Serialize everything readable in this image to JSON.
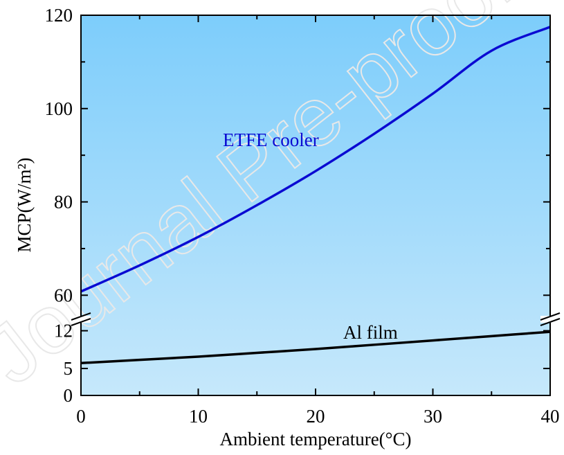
{
  "chart_data": {
    "type": "line",
    "xlabel": "Ambient temperature(°C)",
    "ylabel": "MCP(W/m²)",
    "xlim": [
      0,
      40
    ],
    "x_ticks": [
      "0",
      "10",
      "20",
      "30",
      "40"
    ],
    "y_ticks_upper": [
      "60",
      "80",
      "100",
      "120"
    ],
    "y_ticks_lower": [
      "0",
      "5",
      "12"
    ],
    "ylim_upper": [
      55,
      120
    ],
    "ylim_lower": [
      0,
      14
    ],
    "axis_break": true,
    "grid": false,
    "background_gradient": [
      "#7dcdfb",
      "#c6e8fb"
    ],
    "series": [
      {
        "name": "ETFE cooler",
        "color": "#0a0ad2",
        "x": [
          0,
          5,
          10,
          15,
          20,
          25,
          30,
          35,
          40
        ],
        "y": [
          60.8,
          66.4,
          72.5,
          79.3,
          86.6,
          94.6,
          103.2,
          112.4,
          117.5
        ]
      },
      {
        "name": "Al film",
        "color": "#000000",
        "x": [
          0,
          5,
          10,
          15,
          20,
          25,
          30,
          35,
          40
        ],
        "y": [
          6.0,
          6.6,
          7.2,
          7.9,
          8.6,
          9.4,
          10.2,
          11.0,
          11.8
        ]
      }
    ],
    "annotations": [
      {
        "text": "ETFE cooler",
        "color": "#0a0ad2"
      },
      {
        "text": "Al film",
        "color": "#000000"
      }
    ],
    "watermark": "Journal Pre-proof"
  }
}
